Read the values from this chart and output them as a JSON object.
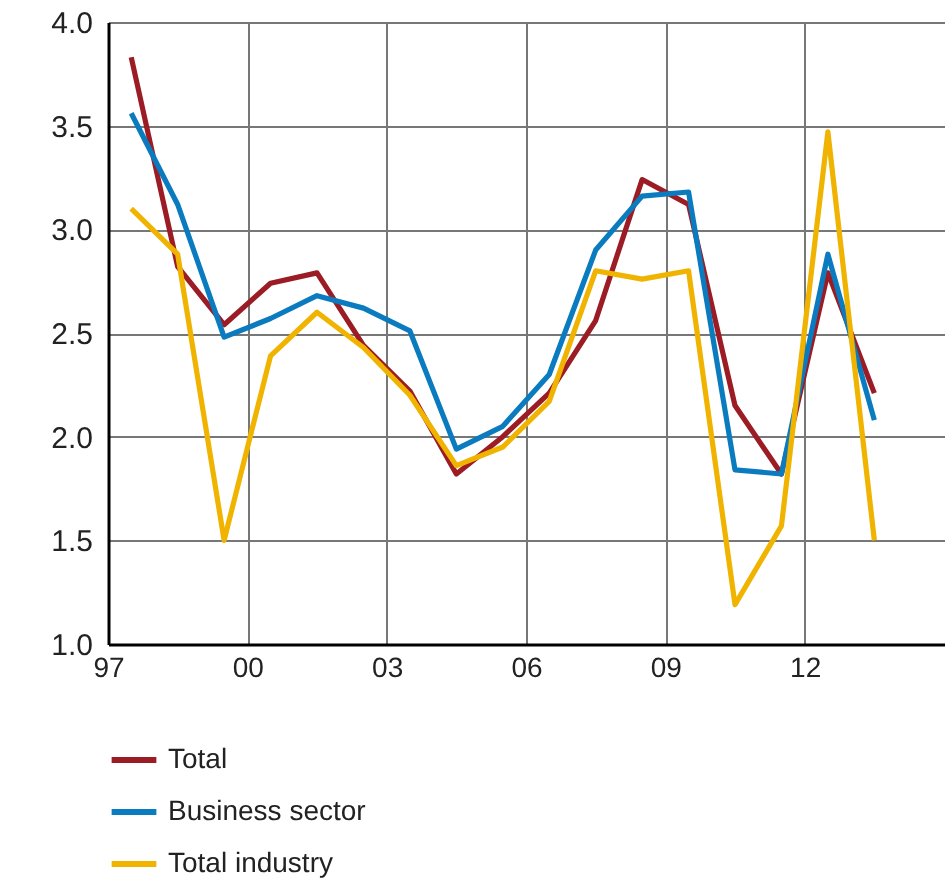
{
  "chart_data": {
    "type": "line",
    "x": [
      1997.5,
      1998.5,
      1999.5,
      2000.5,
      2001.5,
      2002.5,
      2003.5,
      2004.5,
      2005.5,
      2006.5,
      2007.5,
      2008.5,
      2009.5,
      2010.5,
      2011.5,
      2012.5,
      2013.5
    ],
    "series": [
      {
        "name": "Total",
        "color": "#9b1c24",
        "values": [
          3.83,
          2.82,
          2.54,
          2.74,
          2.79,
          2.44,
          2.22,
          1.82,
          2.0,
          2.21,
          2.56,
          3.24,
          3.12,
          2.15,
          1.82,
          2.79,
          2.21
        ]
      },
      {
        "name": "Business sector",
        "color": "#0a7bbf",
        "values": [
          3.56,
          3.12,
          2.48,
          2.57,
          2.68,
          2.62,
          2.51,
          1.94,
          2.05,
          2.3,
          2.9,
          3.16,
          3.18,
          1.84,
          1.82,
          2.88,
          2.08
        ]
      },
      {
        "name": "Total industry",
        "color": "#f0b400",
        "values": [
          3.1,
          2.88,
          1.5,
          2.39,
          2.6,
          2.43,
          2.2,
          1.86,
          1.95,
          2.17,
          2.8,
          2.76,
          2.8,
          1.19,
          1.57,
          3.47,
          1.5
        ]
      }
    ],
    "xlim": [
      1997,
      2015
    ],
    "xticks": [
      {
        "value": 1997,
        "label": "97"
      },
      {
        "value": 2000,
        "label": "00"
      },
      {
        "value": 2003,
        "label": "03"
      },
      {
        "value": 2006,
        "label": "06"
      },
      {
        "value": 2009,
        "label": "09"
      },
      {
        "value": 2012,
        "label": "12"
      }
    ],
    "ylim": [
      1.0,
      4.0
    ],
    "yticks": [
      {
        "value": 1.0,
        "label": "1.0"
      },
      {
        "value": 1.5,
        "label": "1.5"
      },
      {
        "value": 2.0,
        "label": "2.0"
      },
      {
        "value": 2.5,
        "label": "2.5"
      },
      {
        "value": 3.0,
        "label": "3.0"
      },
      {
        "value": 3.5,
        "label": "3.5"
      },
      {
        "value": 4.0,
        "label": "4.0"
      }
    ],
    "grid": true,
    "legend": "bottom",
    "line_style": "solid",
    "marker": "none"
  }
}
